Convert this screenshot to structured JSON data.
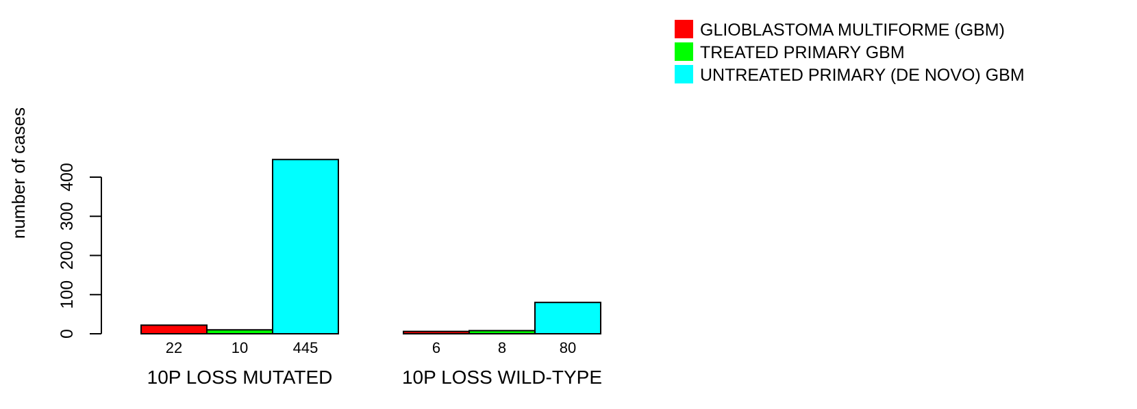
{
  "chart_data": {
    "type": "bar",
    "ylabel": "number of cases",
    "ylim": [
      0,
      450
    ],
    "yticks": [
      0,
      100,
      200,
      300,
      400
    ],
    "grid": false,
    "legend_position": "top-right",
    "categories": [
      "10P LOSS MUTATED",
      "10P LOSS WILD-TYPE"
    ],
    "series": [
      {
        "name": "GLIOBLASTOMA MULTIFORME (GBM)",
        "color": "#ff0000",
        "values": [
          22,
          6
        ],
        "value_labels": [
          "22",
          "6"
        ]
      },
      {
        "name": "TREATED PRIMARY GBM",
        "color": "#00ff00",
        "values": [
          10,
          8
        ],
        "value_labels": [
          "10",
          "8"
        ]
      },
      {
        "name": "UNTREATED PRIMARY (DE NOVO) GBM",
        "color": "#00ffff",
        "values": [
          445,
          80
        ],
        "value_labels": [
          "445",
          "80"
        ]
      }
    ]
  }
}
